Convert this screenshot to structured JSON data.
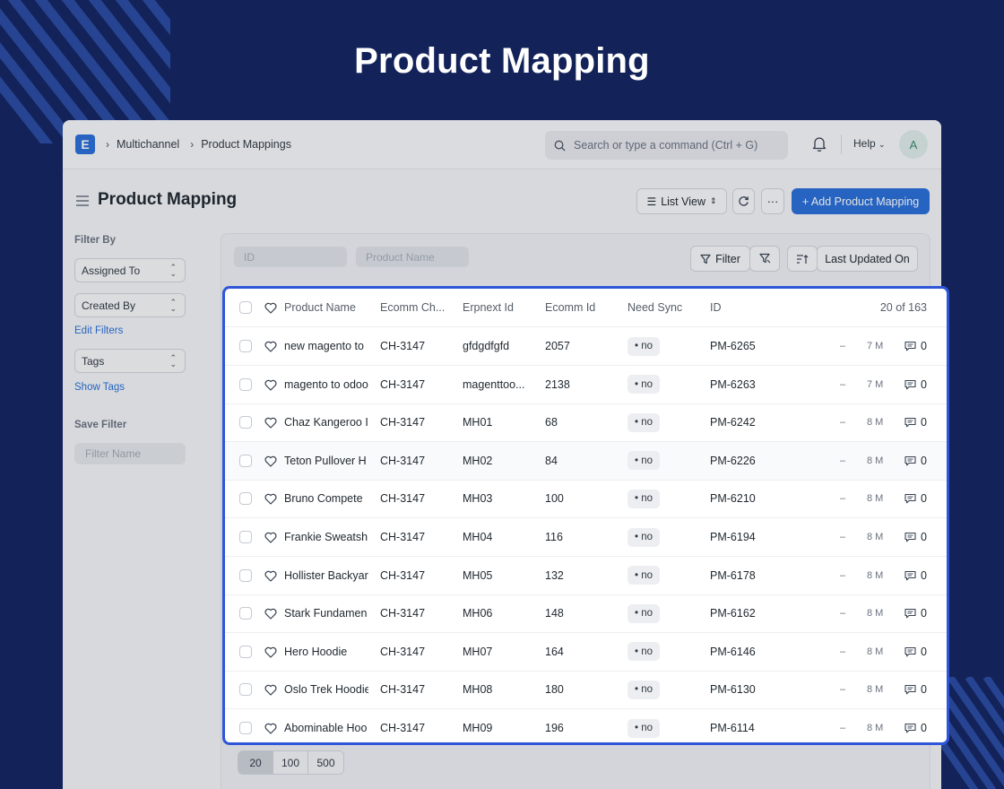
{
  "hero": {
    "title": "Product Mapping"
  },
  "navbar": {
    "logo_letter": "E",
    "breadcrumbs": [
      "Multichannel",
      "Product Mappings"
    ],
    "search_placeholder": "Search or type a command (Ctrl + G)",
    "help_label": "Help",
    "avatar_initial": "A"
  },
  "page": {
    "title": "Product Mapping",
    "list_view_label": "List View",
    "more_label": "···",
    "add_button_label": "+ Add Product Mapping"
  },
  "sidebar": {
    "filter_by_label": "Filter By",
    "assigned_to": "Assigned To",
    "created_by": "Created By",
    "edit_filters": "Edit Filters",
    "tags": "Tags",
    "show_tags": "Show Tags",
    "save_filter_label": "Save Filter",
    "filter_name_placeholder": "Filter Name"
  },
  "toolbar": {
    "id_placeholder": "ID",
    "product_name_placeholder": "Product Name",
    "filter_label": "Filter",
    "sort_label": "Last Updated On"
  },
  "list": {
    "headers": {
      "product_name": "Product Name",
      "ecomm_channel": "Ecomm Ch...",
      "erpnext_id": "Erpnext Id",
      "ecomm_id": "Ecomm Id",
      "need_sync": "Need Sync",
      "id": "ID",
      "count": "20 of 163"
    },
    "rows": [
      {
        "name": "new magento to",
        "channel": "CH-3147",
        "erpnext": "gfdgdfgfd",
        "ecomm": "2057",
        "sync": "• no",
        "id": "PM-6265",
        "dash": "–",
        "age": "7 M",
        "comments": "0"
      },
      {
        "name": "magento to odoo",
        "channel": "CH-3147",
        "erpnext": "magenttoo...",
        "ecomm": "2138",
        "sync": "• no",
        "id": "PM-6263",
        "dash": "–",
        "age": "7 M",
        "comments": "0"
      },
      {
        "name": "Chaz Kangeroo I",
        "channel": "CH-3147",
        "erpnext": "MH01",
        "ecomm": "68",
        "sync": "• no",
        "id": "PM-6242",
        "dash": "–",
        "age": "8 M",
        "comments": "0"
      },
      {
        "name": "Teton Pullover H",
        "channel": "CH-3147",
        "erpnext": "MH02",
        "ecomm": "84",
        "sync": "• no",
        "id": "PM-6226",
        "dash": "–",
        "age": "8 M",
        "comments": "0"
      },
      {
        "name": "Bruno Compete",
        "channel": "CH-3147",
        "erpnext": "MH03",
        "ecomm": "100",
        "sync": "• no",
        "id": "PM-6210",
        "dash": "–",
        "age": "8 M",
        "comments": "0"
      },
      {
        "name": "Frankie Sweatsh",
        "channel": "CH-3147",
        "erpnext": "MH04",
        "ecomm": "116",
        "sync": "• no",
        "id": "PM-6194",
        "dash": "–",
        "age": "8 M",
        "comments": "0"
      },
      {
        "name": "Hollister Backyar",
        "channel": "CH-3147",
        "erpnext": "MH05",
        "ecomm": "132",
        "sync": "• no",
        "id": "PM-6178",
        "dash": "–",
        "age": "8 M",
        "comments": "0"
      },
      {
        "name": "Stark Fundamen",
        "channel": "CH-3147",
        "erpnext": "MH06",
        "ecomm": "148",
        "sync": "• no",
        "id": "PM-6162",
        "dash": "–",
        "age": "8 M",
        "comments": "0"
      },
      {
        "name": "Hero Hoodie",
        "channel": "CH-3147",
        "erpnext": "MH07",
        "ecomm": "164",
        "sync": "• no",
        "id": "PM-6146",
        "dash": "–",
        "age": "8 M",
        "comments": "0"
      },
      {
        "name": "Oslo Trek Hoodie",
        "channel": "CH-3147",
        "erpnext": "MH08",
        "ecomm": "180",
        "sync": "• no",
        "id": "PM-6130",
        "dash": "–",
        "age": "8 M",
        "comments": "0"
      },
      {
        "name": "Abominable Hoo",
        "channel": "CH-3147",
        "erpnext": "MH09",
        "ecomm": "196",
        "sync": "• no",
        "id": "PM-6114",
        "dash": "–",
        "age": "8 M",
        "comments": "0"
      }
    ]
  },
  "pagination": {
    "sizes": [
      "20",
      "100",
      "500"
    ],
    "active": "20"
  }
}
